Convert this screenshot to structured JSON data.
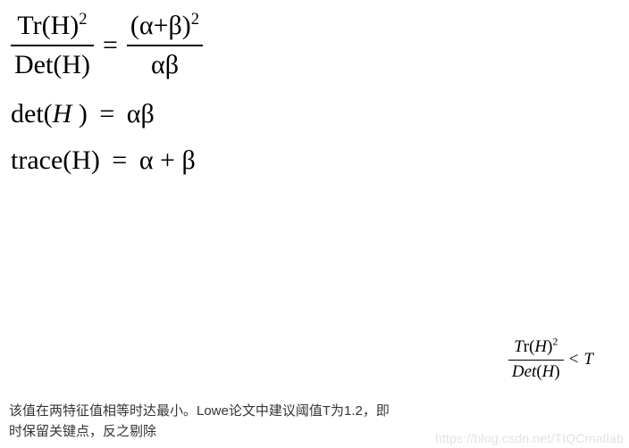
{
  "colors": {
    "text": "#000000",
    "para_text": "#353535",
    "watermark": "#e3e3e3",
    "background": "#ffffff"
  },
  "fonts": {
    "math_family": "Times New Roman",
    "body_family": "Microsoft YaHei",
    "math_big_pt": 30,
    "math_small_pt": 19,
    "body_pt": 15
  },
  "eq1": {
    "left_num_a": "Tr(H)",
    "left_num_sup": "2",
    "left_den": "Det(H)",
    "eq": "=",
    "right_num_a": "(α+β)",
    "right_num_sup": "2",
    "right_den": "αβ"
  },
  "eq2": {
    "lhs_a": "det(",
    "lhs_h": "H",
    "lhs_b": " )",
    "eq": "=",
    "rhs": "αβ"
  },
  "eq3": {
    "lhs": "trace(H)",
    "eq": "=",
    "rhs": "α + β"
  },
  "eq4": {
    "num_a_i": "T",
    "num_a_r": "r(",
    "num_h": "H",
    "num_b": ")",
    "num_sup": "2",
    "den_a": "Det",
    "den_b": "(",
    "den_h": "H",
    "den_c": ")",
    "op": "<",
    "rhs": "T"
  },
  "para": {
    "line1": "该值在两特征值相等时达最小。Lowe论文中建议阈值T为1.2，即",
    "line2": "时保留关键点，反之剔除"
  },
  "watermark": "https://blog.csdn.net/TIQCmatlab"
}
